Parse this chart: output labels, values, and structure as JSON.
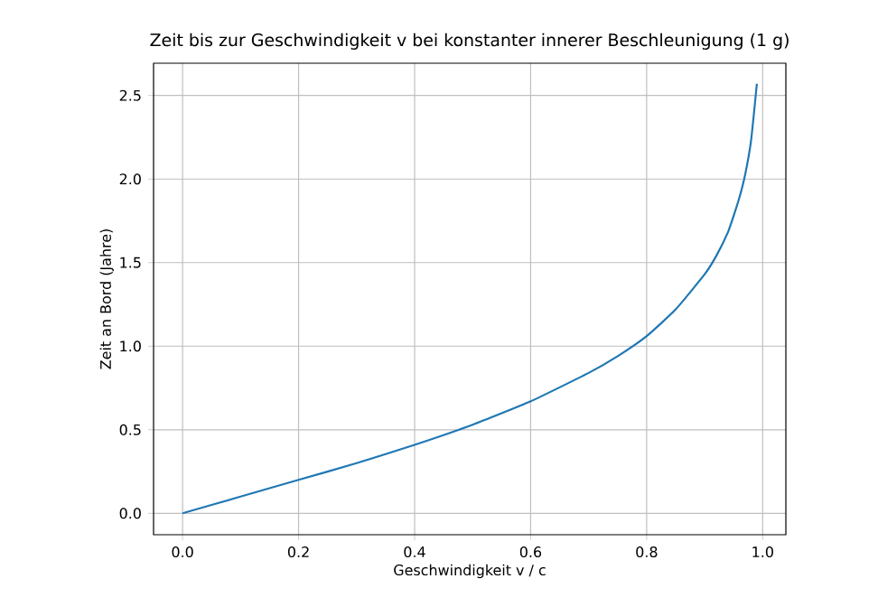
{
  "chart_data": {
    "type": "line",
    "title": "Zeit bis zur Geschwindigkeit v bei konstanter innerer Beschleunigung (1 g)",
    "xlabel": "Geschwindigkeit v / c",
    "ylabel": "Zeit an Bord (Jahre)",
    "x": [
      0,
      0.1,
      0.2,
      0.3,
      0.4,
      0.5,
      0.6,
      0.7,
      0.75,
      0.8,
      0.85,
      0.9,
      0.92,
      0.94,
      0.95,
      0.96,
      0.97,
      0.98,
      0.99
    ],
    "series": [
      {
        "color": "#1f77b4",
        "values": [
          0,
          0.1,
          0.2,
          0.3,
          0.41,
          0.53,
          0.67,
          0.84,
          0.94,
          1.06,
          1.22,
          1.43,
          1.54,
          1.68,
          1.78,
          1.89,
          2.03,
          2.23,
          2.57
        ]
      }
    ],
    "xlim": [
      -0.05,
      1.04
    ],
    "ylim": [
      -0.128,
      2.693
    ],
    "xticks": [
      {
        "value": 0,
        "label": "0.0"
      },
      {
        "value": 0.2,
        "label": "0.2"
      },
      {
        "value": 0.4,
        "label": "0.4"
      },
      {
        "value": 0.6,
        "label": "0.6"
      },
      {
        "value": 0.8,
        "label": "0.8"
      },
      {
        "value": 1,
        "label": "1.0"
      }
    ],
    "yticks": [
      {
        "value": 0,
        "label": "0.0"
      },
      {
        "value": 0.5,
        "label": "0.5"
      },
      {
        "value": 1,
        "label": "1.0"
      },
      {
        "value": 1.5,
        "label": "1.5"
      },
      {
        "value": 2,
        "label": "2.0"
      },
      {
        "value": 2.5,
        "label": "2.5"
      }
    ],
    "grid": true,
    "marker": "none",
    "line_style": "solid"
  }
}
